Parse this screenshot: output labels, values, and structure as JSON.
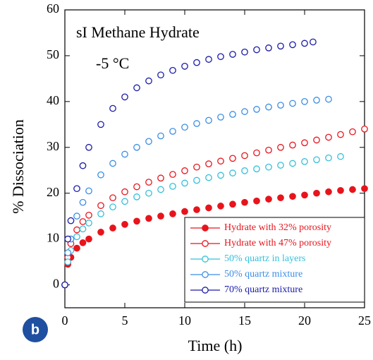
{
  "chart_data": {
    "type": "scatter",
    "annotations": [
      "sI Methane Hydrate",
      "-5 °C"
    ],
    "panel_label": "b",
    "x_label": "Time (h)",
    "y_label": "% Dissociation",
    "xlim": [
      0,
      25
    ],
    "ylim": [
      -5,
      60
    ],
    "xticks": [
      0,
      5,
      10,
      15,
      20,
      25
    ],
    "yticks": [
      0,
      10,
      20,
      30,
      40,
      50,
      60
    ],
    "legend": "lower right",
    "series": [
      {
        "name": "Hydrate with 32% porosity",
        "color": "#e8141c",
        "filled": true,
        "x": [
          0,
          0.25,
          0.5,
          1,
          1.5,
          2,
          3,
          4,
          5,
          6,
          7,
          8,
          9,
          10,
          11,
          12,
          13,
          14,
          15,
          16,
          17,
          18,
          19,
          20,
          21,
          22,
          23,
          24,
          25
        ],
        "values": [
          0,
          4.5,
          6,
          8,
          9.2,
          10,
          11.5,
          12.4,
          13.2,
          13.9,
          14.5,
          15,
          15.5,
          16,
          16.4,
          16.8,
          17.2,
          17.6,
          18,
          18.3,
          18.7,
          19,
          19.3,
          19.6,
          20,
          20.3,
          20.6,
          20.8,
          21
        ]
      },
      {
        "name": "Hydrate with 47% porosity",
        "color": "#e8141c",
        "filled": false,
        "x": [
          0,
          0.25,
          0.5,
          1,
          1.5,
          2,
          3,
          4,
          5,
          6,
          7,
          8,
          9,
          10,
          11,
          12,
          13,
          14,
          15,
          16,
          17,
          18,
          19,
          20,
          21,
          22,
          23,
          24,
          25
        ],
        "values": [
          0,
          6,
          9,
          12,
          13.8,
          15.2,
          17.3,
          19,
          20.3,
          21.4,
          22.4,
          23.3,
          24.1,
          24.9,
          25.7,
          26.4,
          27,
          27.6,
          28.2,
          28.8,
          29.4,
          30,
          30.5,
          31,
          31.6,
          32.2,
          32.8,
          33.4,
          34
        ]
      },
      {
        "name": "50% quartz in layers",
        "color": "#33c0dc",
        "filled": false,
        "x": [
          0,
          0.25,
          0.5,
          1,
          1.5,
          2,
          3,
          4,
          5,
          6,
          7,
          8,
          9,
          10,
          11,
          12,
          13,
          14,
          15,
          16,
          17,
          18,
          19,
          20,
          21,
          22,
          23
        ],
        "values": [
          0,
          5,
          7.5,
          10.5,
          12.2,
          13.5,
          15.5,
          17,
          18.2,
          19.2,
          20,
          20.8,
          21.5,
          22.2,
          22.8,
          23.4,
          23.9,
          24.4,
          24.9,
          25.3,
          25.7,
          26.1,
          26.5,
          26.9,
          27.3,
          27.7,
          28
        ]
      },
      {
        "name": "50% quartz mixture",
        "color": "#3a8ee6",
        "filled": false,
        "x": [
          0,
          0.25,
          0.5,
          1,
          1.5,
          2,
          3,
          4,
          5,
          6,
          7,
          8,
          9,
          10,
          11,
          12,
          13,
          14,
          15,
          16,
          17,
          18,
          19,
          20,
          21,
          22
        ],
        "values": [
          0,
          7,
          10,
          15,
          18,
          20.5,
          24,
          26.5,
          28.5,
          30,
          31.3,
          32.5,
          33.5,
          34.4,
          35.2,
          35.9,
          36.6,
          37.2,
          37.8,
          38.3,
          38.8,
          39.2,
          39.6,
          40,
          40.3,
          40.5
        ]
      },
      {
        "name": "70% quartz mixture",
        "color": "#1a1aa8",
        "filled": false,
        "x": [
          0,
          0.25,
          0.5,
          1,
          1.5,
          2,
          3,
          4,
          5,
          6,
          7,
          8,
          9,
          10,
          11,
          12,
          13,
          14,
          15,
          16,
          17,
          18,
          19,
          20,
          20.7
        ],
        "values": [
          0,
          10,
          14,
          21,
          26,
          30,
          35,
          38.5,
          41,
          43,
          44.5,
          45.8,
          46.8,
          47.7,
          48.5,
          49.2,
          49.8,
          50.3,
          50.8,
          51.3,
          51.7,
          52.1,
          52.4,
          52.7,
          53
        ]
      }
    ]
  }
}
